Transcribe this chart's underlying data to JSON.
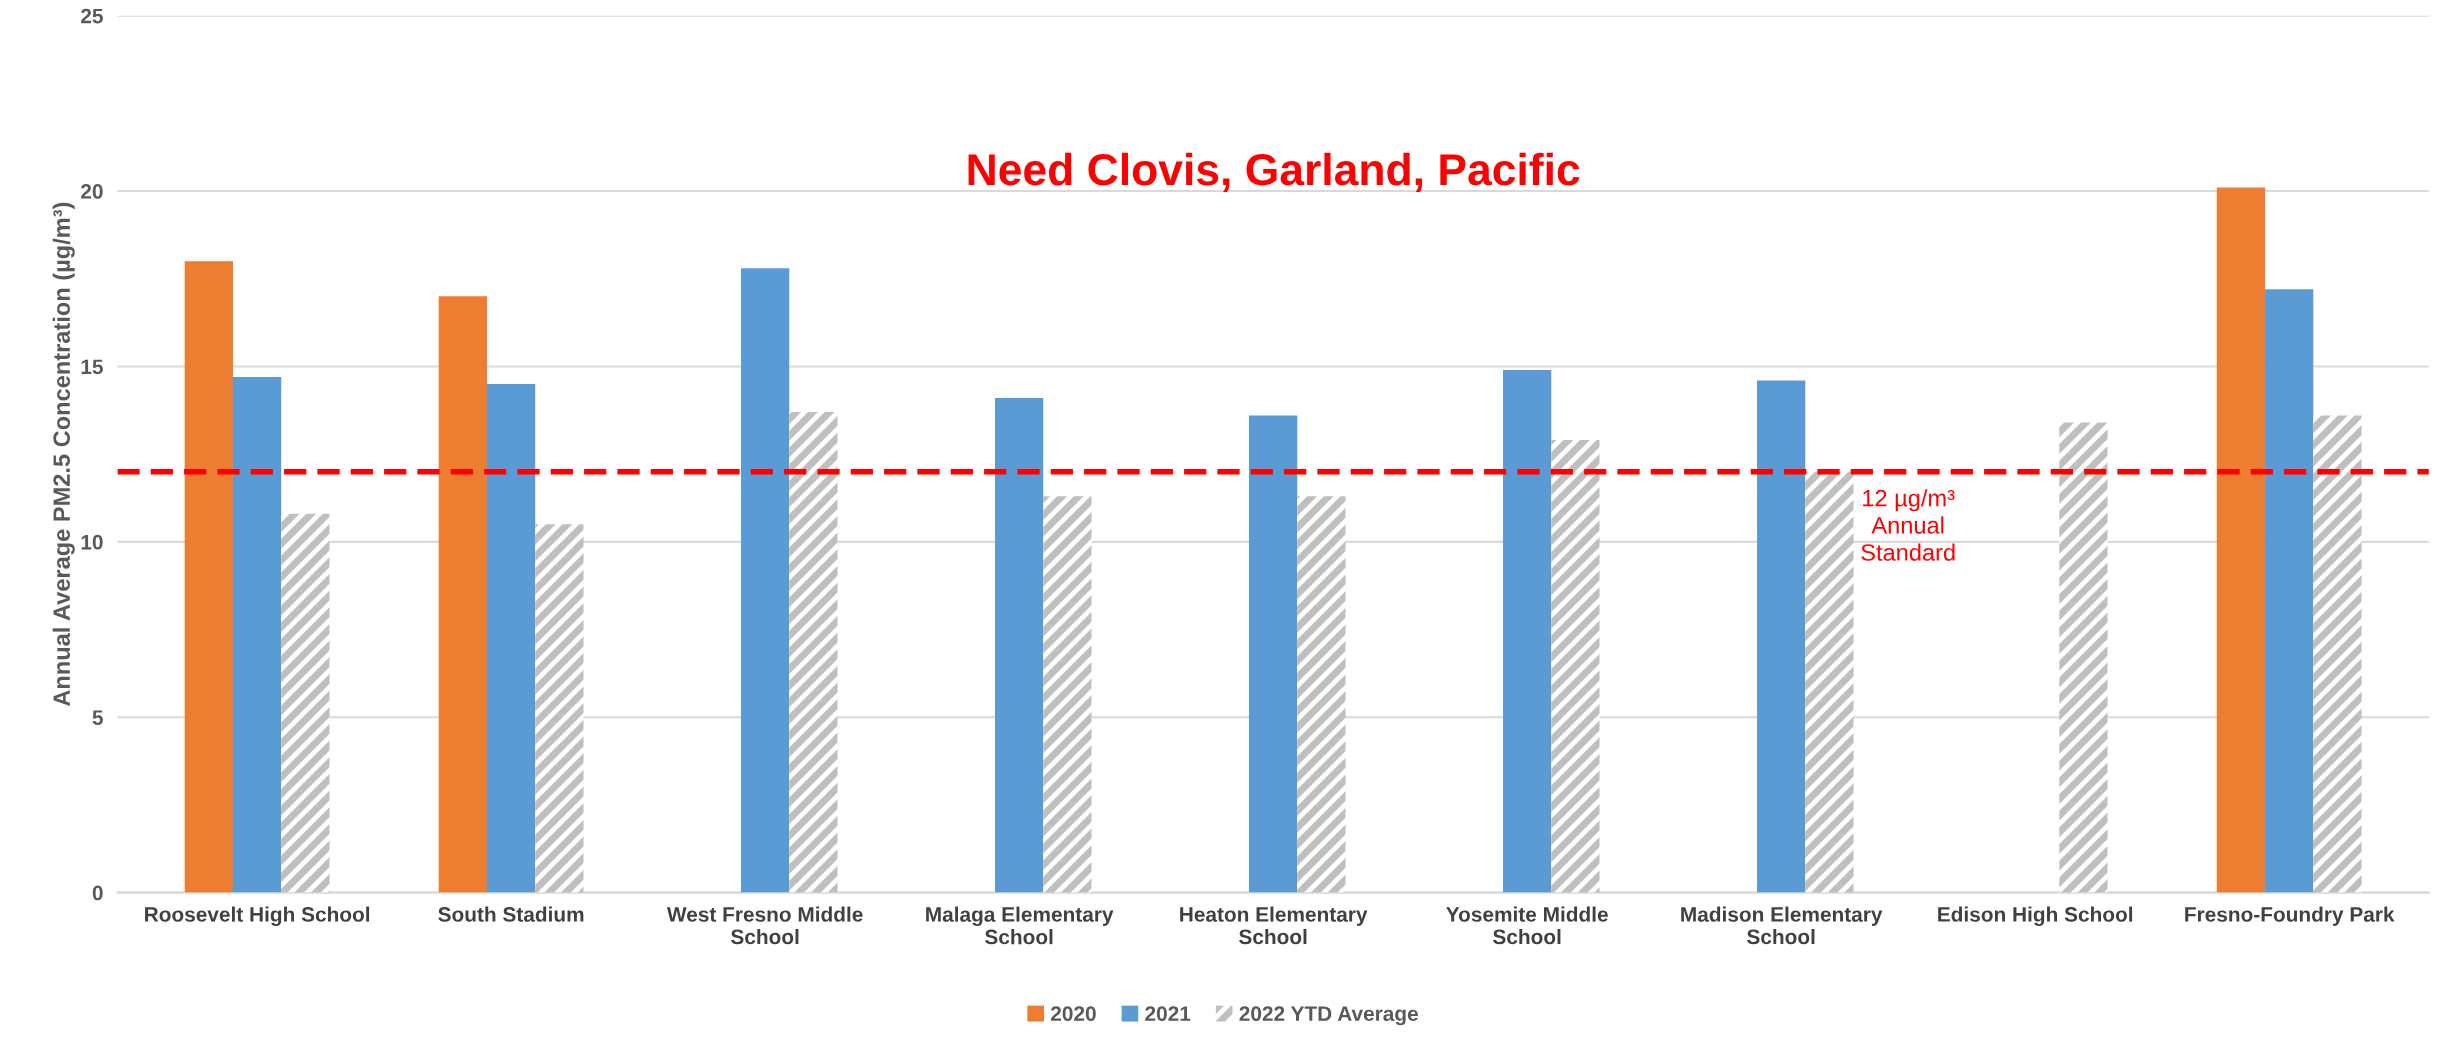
{
  "chart_data": {
    "type": "bar",
    "title": "Need Clovis, Garland, Pacific",
    "ylabel": "Annual Average PM2.5 Concentration (µg/m³)",
    "categories": [
      "Roosevelt High School",
      "South Stadium",
      "West Fresno Middle School",
      "Malaga Elementary School",
      "Heaton Elementary School",
      "Yosemite Middle School",
      "Madison Elementary School",
      "Edison High School",
      "Fresno-Foundry Park"
    ],
    "series": [
      {
        "name": "2020",
        "color": "#ed7d31",
        "values": [
          18.0,
          17.0,
          null,
          null,
          null,
          null,
          null,
          null,
          20.1
        ]
      },
      {
        "name": "2021",
        "color": "#5b9bd5",
        "values": [
          14.7,
          14.5,
          17.8,
          14.1,
          13.6,
          14.9,
          14.6,
          null,
          17.2
        ]
      },
      {
        "name": "2022 YTD Average",
        "color": "#bfbfbf",
        "values": [
          10.8,
          10.5,
          13.7,
          11.3,
          11.3,
          12.9,
          12.0,
          13.4,
          13.6
        ]
      }
    ],
    "ylim": [
      0,
      25
    ],
    "yticks": [
      0,
      5,
      10,
      15,
      20,
      25
    ],
    "grid": "y",
    "legend": "bottom",
    "ref_lines": [
      {
        "axis": "y",
        "value": 12,
        "label": "12 µg/m³\nAnnual\nStandard",
        "color": "#ff0000",
        "line_style": "dashed"
      }
    ]
  }
}
